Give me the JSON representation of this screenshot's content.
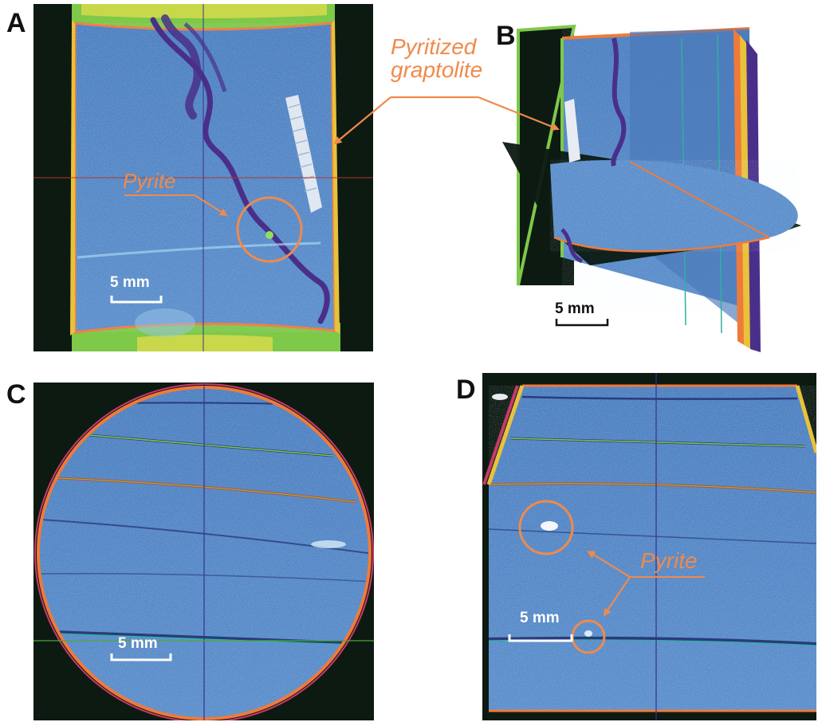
{
  "panels": [
    {
      "label": "A",
      "scale_bar": "5 mm",
      "annotation": "Pyrite"
    },
    {
      "label": "B",
      "scale_bar": "5 mm",
      "annotation": "Pyritized\ngraptolite"
    },
    {
      "label": "C",
      "scale_bar": "5 mm"
    },
    {
      "label": "D",
      "scale_bar": "5 mm",
      "annotation": "Pyrite"
    }
  ],
  "annotations": {
    "pyritized_line1": "Pyritized",
    "pyritized_line2": "graptolite",
    "pyrite_a": "Pyrite",
    "pyrite_d": "Pyrite"
  },
  "colors": {
    "annotation": "#f08a4b",
    "scan_blue": "#5a8cc8",
    "scan_dark": "#0d1a12",
    "rim_orange": "#f07a3a",
    "rim_green": "#7ec84a",
    "crack_purple": "#4a2f8a"
  }
}
